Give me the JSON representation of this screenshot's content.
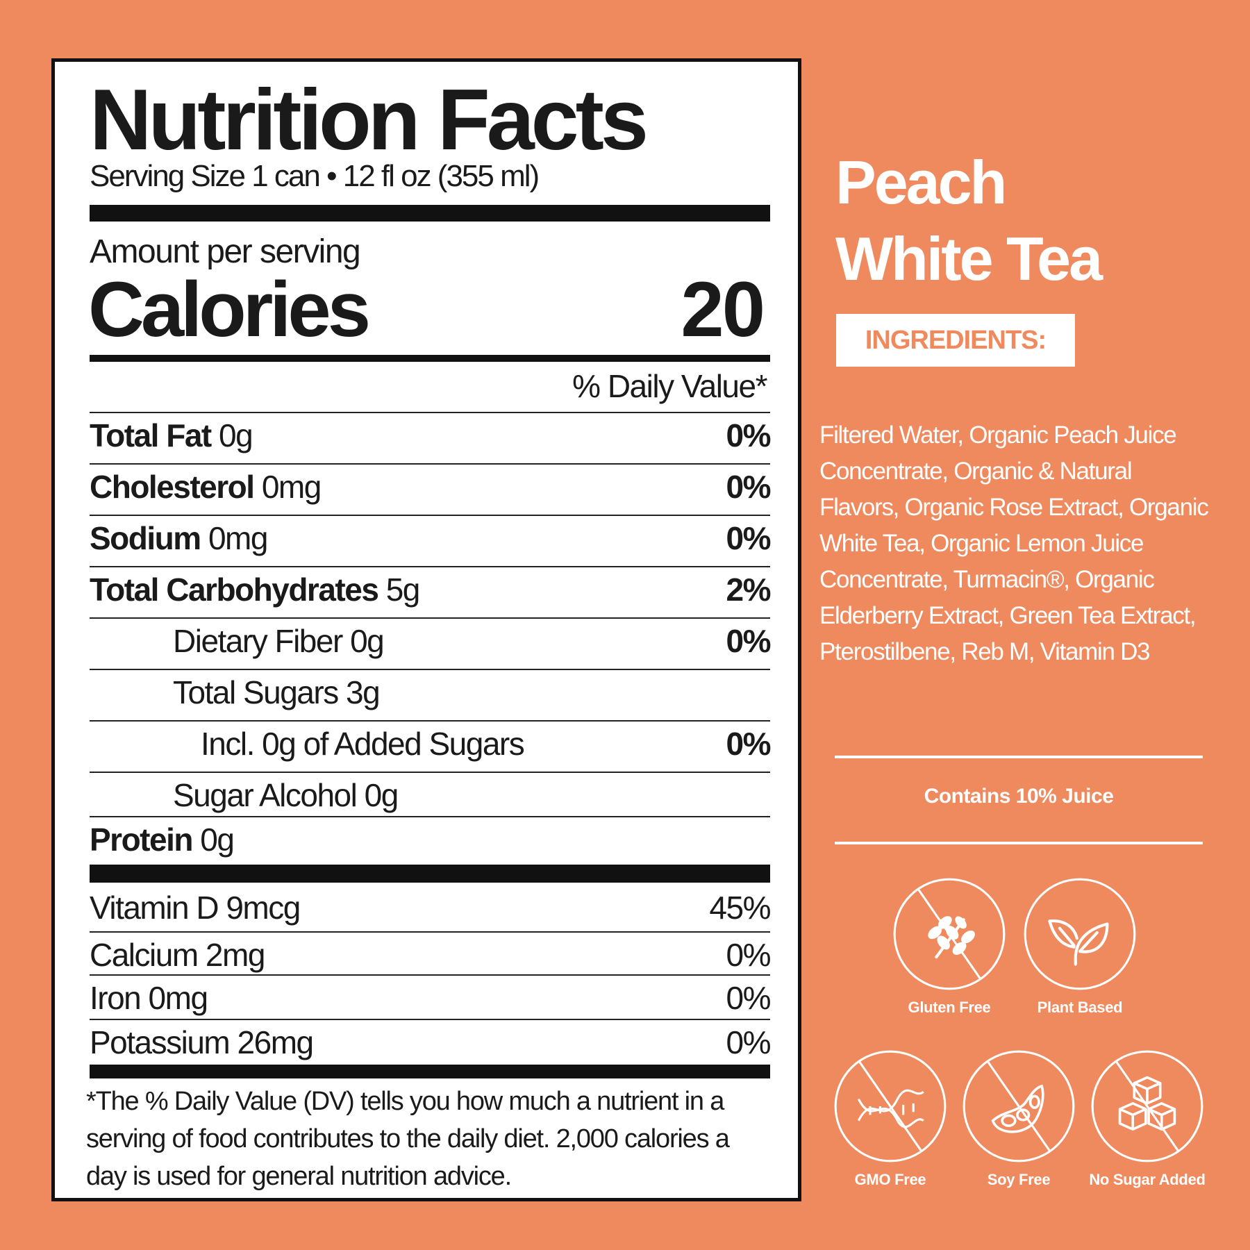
{
  "panel": {
    "title": "Nutrition Facts",
    "serving_size": "Serving Size 1 can • 12 fl oz (355 ml)",
    "amount_per_serving": "Amount per serving",
    "calories_label": "Calories",
    "calories_value": "20",
    "daily_value_header": "% Daily Value*",
    "nutrients": [
      {
        "name": "Total Fat",
        "amount": "0g",
        "dv": "0%"
      },
      {
        "name": "Cholesterol",
        "amount": "0mg",
        "dv": "0%"
      },
      {
        "name": "Sodium",
        "amount": "0mg",
        "dv": "0%"
      },
      {
        "name": "Total Carbohydrates",
        "amount": "5g",
        "dv": "2%"
      },
      {
        "name": "Dietary Fiber 0g",
        "amount": "",
        "dv": "0%"
      },
      {
        "name": "Total Sugars",
        "amount": "3g",
        "dv": ""
      },
      {
        "name": "Incl. 0g of Added Sugars",
        "amount": "",
        "dv": "0%"
      },
      {
        "name": "Sugar Alcohol",
        "amount": "0g",
        "dv": ""
      },
      {
        "name": "Protein",
        "amount": "0g",
        "dv": ""
      }
    ],
    "vitamins": [
      {
        "label": "Vitamin D 9mcg",
        "dv": "45%"
      },
      {
        "label": "Calcium 2mg",
        "dv": "0%"
      },
      {
        "label": "Iron 0mg",
        "dv": "0%"
      },
      {
        "label": "Potassium 26mg",
        "dv": "0%"
      }
    ],
    "footnote": "*The % Daily Value (DV) tells you how much a nutrient in a serving of food contributes to the daily diet. 2,000 calories a day is used for general nutrition advice."
  },
  "product": {
    "name_line1": "Peach",
    "name_line2": "White Tea",
    "ingredients_label": "INGREDIENTS:",
    "ingredients": "Filtered Water, Organic Peach Juice Concentrate, Organic & Natural Flavors, Organic Rose Extract, Organic White Tea, Organic Lemon Juice Concentrate, Turmacin®, Organic Elderberry Extract, Green Tea Extract, Pterostilbene, Reb M, Vitamin D3",
    "juice_note": "Contains 10% Juice"
  },
  "badges": [
    {
      "label": "Gluten Free",
      "icon": "wheat-icon"
    },
    {
      "label": "Plant Based",
      "icon": "leaf-icon"
    },
    {
      "label": "GMO Free",
      "icon": "dna-icon"
    },
    {
      "label": "Soy Free",
      "icon": "soybean-icon"
    },
    {
      "label": "No Sugar Added",
      "icon": "sugar-cubes-icon"
    }
  ],
  "colors": {
    "background": "#ef8a5f",
    "panel": "#ffffff",
    "text": "#1a1a1a",
    "accent_text": "#ffffff"
  }
}
